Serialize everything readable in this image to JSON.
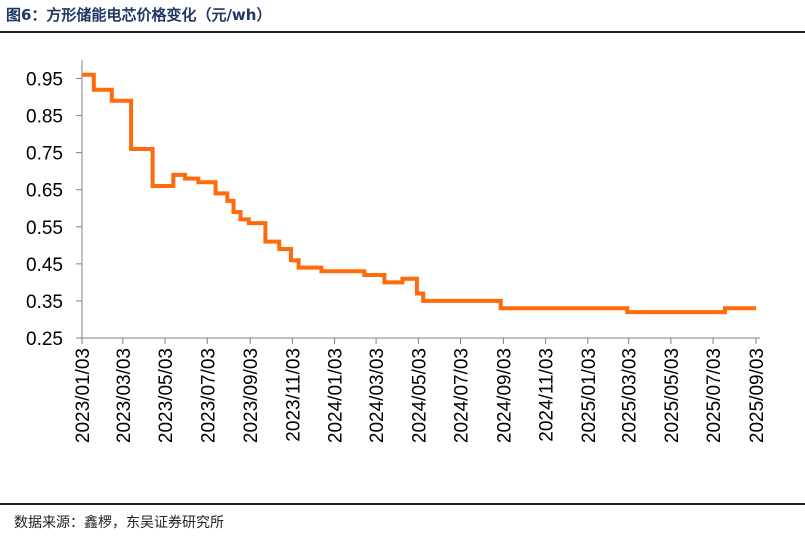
{
  "title": "图6：方形储能电芯价格变化（元/wh）",
  "source": "数据来源：鑫椤，东吴证券研究所",
  "colors": {
    "line": "#FF6A0A",
    "axis": "#808080",
    "title": "#1f3864"
  },
  "chart_data": {
    "type": "line",
    "title": "方形储能电芯价格变化（元/wh）",
    "xlabel": "",
    "ylabel": "",
    "ylim": [
      0.25,
      1.0
    ],
    "yticks": [
      0.95,
      0.85,
      0.75,
      0.65,
      0.55,
      0.45,
      0.35,
      0.25
    ],
    "xticks": [
      "2023/01/03",
      "2023/03/03",
      "2023/05/03",
      "2023/07/03",
      "2023/09/03",
      "2023/11/03",
      "2024/01/03",
      "2024/03/03",
      "2024/05/03",
      "2024/07/03",
      "2024/09/03",
      "2024/11/03",
      "2025/01/03",
      "2025/03/03",
      "2025/05/03",
      "2025/07/03",
      "2025/09/03"
    ],
    "grid": false,
    "legend": "none",
    "series": [
      {
        "step": true,
        "points": [
          [
            "2023-01-03",
            0.96
          ],
          [
            "2023-01-20",
            0.92
          ],
          [
            "2023-02-15",
            0.89
          ],
          [
            "2023-03-15",
            0.76
          ],
          [
            "2023-04-15",
            0.66
          ],
          [
            "2023-05-15",
            0.69
          ],
          [
            "2023-06-01",
            0.68
          ],
          [
            "2023-06-20",
            0.67
          ],
          [
            "2023-07-15",
            0.64
          ],
          [
            "2023-08-01",
            0.62
          ],
          [
            "2023-08-10",
            0.59
          ],
          [
            "2023-08-20",
            0.57
          ],
          [
            "2023-09-01",
            0.56
          ],
          [
            "2023-09-25",
            0.51
          ],
          [
            "2023-10-15",
            0.49
          ],
          [
            "2023-11-01",
            0.46
          ],
          [
            "2023-11-12",
            0.44
          ],
          [
            "2023-12-15",
            0.43
          ],
          [
            "2024-02-15",
            0.42
          ],
          [
            "2024-03-15",
            0.4
          ],
          [
            "2024-04-10",
            0.41
          ],
          [
            "2024-05-01",
            0.37
          ],
          [
            "2024-05-10",
            0.35
          ],
          [
            "2024-08-30",
            0.33
          ],
          [
            "2025-03-01",
            0.32
          ],
          [
            "2025-07-20",
            0.33
          ],
          [
            "2025-09-03",
            0.33
          ]
        ]
      }
    ]
  }
}
